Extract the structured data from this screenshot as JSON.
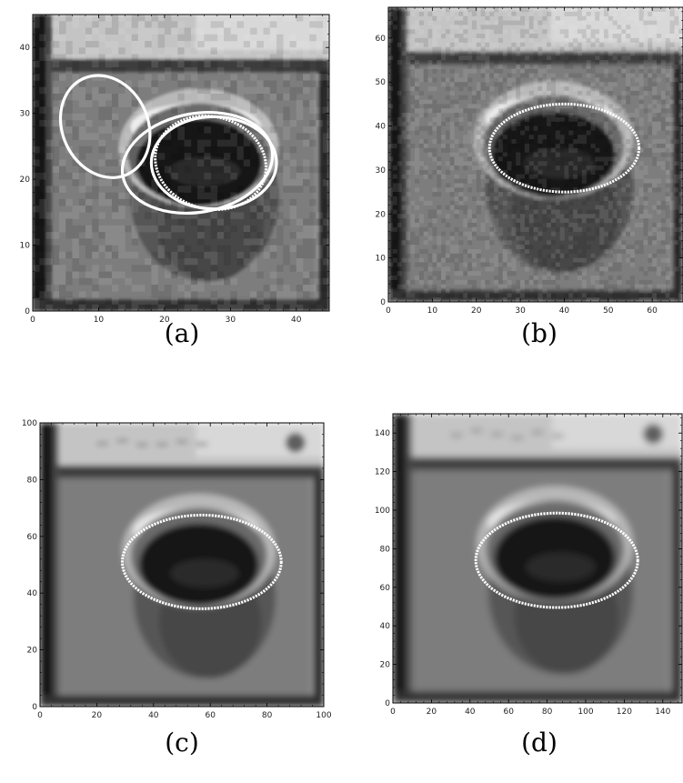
{
  "panels": [
    {
      "id": "a",
      "caption": "(a)",
      "x_ticks": [
        "0",
        "10",
        "20",
        "30",
        "40"
      ],
      "y_ticks": [
        "0",
        "10",
        "20",
        "30",
        "40"
      ],
      "x_tick_values": [
        0,
        10,
        20,
        30,
        40
      ],
      "y_tick_values": [
        0,
        10,
        20,
        30,
        40
      ],
      "range": [
        0,
        45
      ],
      "pixel_grid": 45,
      "ellipses": [
        {
          "cx": 11.0,
          "cy": 28.0,
          "rx": 6.5,
          "ry": 8.0,
          "rot": 25,
          "style": "solid"
        },
        {
          "cx": 25.0,
          "cy": 22.5,
          "rx": 11.5,
          "ry": 7.5,
          "rot": 10,
          "style": "solid"
        },
        {
          "cx": 27.5,
          "cy": 22.5,
          "rx": 9.5,
          "ry": 7.0,
          "rot": 0,
          "style": "solid"
        },
        {
          "cx": 27.0,
          "cy": 22.5,
          "rx": 8.5,
          "ry": 7.0,
          "rot": -15,
          "style": "dotted"
        }
      ]
    },
    {
      "id": "b",
      "caption": "(b)",
      "x_ticks": [
        "0",
        "10",
        "20",
        "30",
        "40",
        "50",
        "60"
      ],
      "y_ticks": [
        "0",
        "10",
        "20",
        "30",
        "40",
        "50",
        "60"
      ],
      "x_tick_values": [
        0,
        10,
        20,
        30,
        40,
        50,
        60
      ],
      "y_tick_values": [
        0,
        10,
        20,
        30,
        40,
        50,
        60
      ],
      "range": [
        0,
        67
      ],
      "pixel_grid": 67,
      "ellipses": [
        {
          "cx": 40.0,
          "cy": 35.0,
          "rx": 17.0,
          "ry": 10.0,
          "rot": 0,
          "style": "dotted"
        }
      ]
    },
    {
      "id": "c",
      "caption": "(c)",
      "x_ticks": [
        "0",
        "20",
        "40",
        "60",
        "80",
        "100"
      ],
      "y_ticks": [
        "0",
        "20",
        "40",
        "60",
        "80",
        "100"
      ],
      "x_tick_values": [
        0,
        20,
        40,
        60,
        80,
        100
      ],
      "y_tick_values": [
        0,
        20,
        40,
        60,
        80,
        100
      ],
      "range": [
        0,
        100
      ],
      "pixel_grid": 100,
      "ellipses": [
        {
          "cx": 57.0,
          "cy": 51.0,
          "rx": 28.0,
          "ry": 16.5,
          "rot": 0,
          "style": "dotted"
        }
      ]
    },
    {
      "id": "d",
      "caption": "(d)",
      "x_ticks": [
        "0",
        "20",
        "40",
        "60",
        "80",
        "100",
        "120",
        "140"
      ],
      "y_ticks": [
        "0",
        "20",
        "40",
        "60",
        "80",
        "100",
        "120",
        "140"
      ],
      "x_tick_values": [
        0,
        20,
        40,
        60,
        80,
        100,
        120,
        140
      ],
      "y_tick_values": [
        0,
        20,
        40,
        60,
        80,
        100,
        120,
        140
      ],
      "range": [
        0,
        150
      ],
      "pixel_grid": 150,
      "ellipses": [
        {
          "cx": 85.0,
          "cy": 74.0,
          "rx": 42.0,
          "ry": 24.5,
          "rot": 0,
          "style": "dotted"
        }
      ]
    }
  ]
}
